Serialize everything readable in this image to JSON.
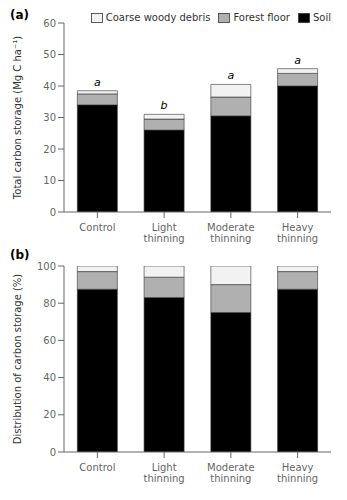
{
  "chart_data": [
    {
      "type": "bar",
      "stacked": true,
      "title": "(a)",
      "categories": [
        "Control",
        "Light thinning",
        "Moderate thinning",
        "Heavy thinning"
      ],
      "series": [
        {
          "name": "Soil",
          "color": "#000000",
          "values": [
            34.0,
            26.0,
            30.5,
            40.0
          ]
        },
        {
          "name": "Forest floor",
          "color": "#b0b0b0",
          "values": [
            3.5,
            3.5,
            6.0,
            4.0
          ]
        },
        {
          "name": "Coarse woody debris",
          "color": "#f2f2f2",
          "values": [
            1.0,
            1.5,
            4.0,
            1.5
          ]
        }
      ],
      "ylabel": "Total carbon storage (Mg C ha⁻¹)",
      "ylim": [
        0,
        60
      ],
      "yticks": [
        0,
        10,
        20,
        30,
        40,
        50,
        60
      ],
      "annotations": [
        {
          "category": "Control",
          "text": "a"
        },
        {
          "category": "Light thinning",
          "text": "b"
        },
        {
          "category": "Moderate thinning",
          "text": "a"
        },
        {
          "category": "Heavy thinning",
          "text": "a"
        }
      ],
      "legend": "upper right",
      "grid": false
    },
    {
      "type": "bar",
      "stacked": true,
      "title": "(b)",
      "categories": [
        "Control",
        "Light thinning",
        "Moderate thinning",
        "Heavy thinning"
      ],
      "series": [
        {
          "name": "Soil",
          "color": "#000000",
          "values": [
            87.5,
            83.0,
            75.0,
            87.5
          ]
        },
        {
          "name": "Forest floor",
          "color": "#b0b0b0",
          "values": [
            9.5,
            11.0,
            15.0,
            9.5
          ]
        },
        {
          "name": "Coarse woody debris",
          "color": "#f2f2f2",
          "values": [
            3.0,
            6.0,
            10.0,
            3.0
          ]
        }
      ],
      "ylabel": "Distribution of carbon storage (%)",
      "ylim": [
        0,
        100
      ],
      "yticks": [
        0,
        20,
        40,
        60,
        80,
        100
      ],
      "grid": false
    }
  ]
}
